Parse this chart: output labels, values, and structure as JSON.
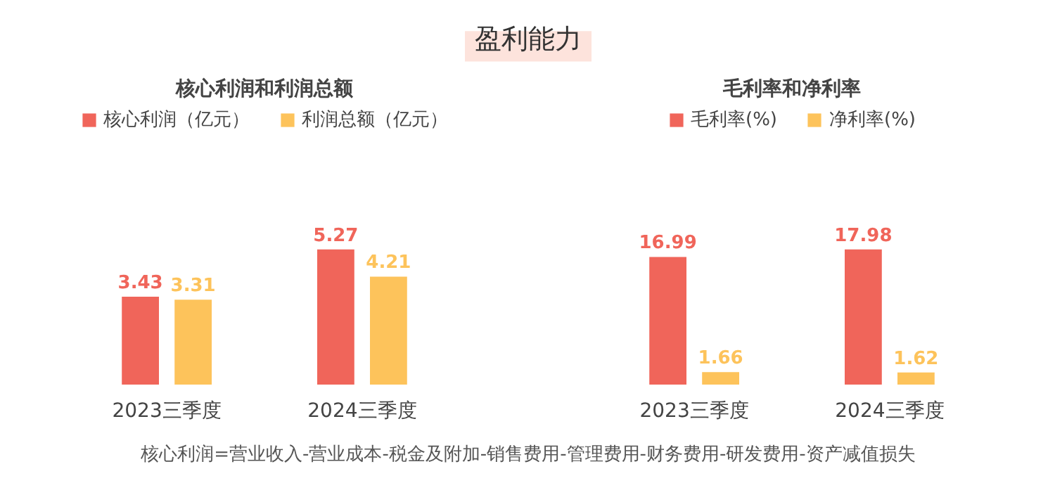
{
  "chart_data": [
    {
      "type": "other",
      "title": "盈利能力",
      "annotations": [
        "核心利润=营业收入-营业成本-税金及附加-销售费用-管理费用-财务费用-研发费用-资产减值损失"
      ]
    },
    {
      "type": "bar",
      "title": "核心利润和利润总额",
      "categories": [
        "2023三季度",
        "2024三季度"
      ],
      "legend": "top",
      "data_labels": true,
      "series": [
        {
          "name": "核心利润（亿元）",
          "color": "#f0655a",
          "values": [
            3.43,
            5.27
          ]
        },
        {
          "name": "利润总额（亿元）",
          "color": "#fdc35b",
          "values": [
            3.31,
            4.21
          ]
        }
      ]
    },
    {
      "type": "bar",
      "title": "毛利率和净利率",
      "categories": [
        "2023三季度",
        "2024三季度"
      ],
      "legend": "top",
      "data_labels": true,
      "series": [
        {
          "name": "毛利率(%)",
          "color": "#f0655a",
          "values": [
            16.99,
            17.98
          ]
        },
        {
          "name": "净利率(%)",
          "color": "#fdc35b",
          "values": [
            1.66,
            1.62
          ]
        }
      ]
    }
  ]
}
